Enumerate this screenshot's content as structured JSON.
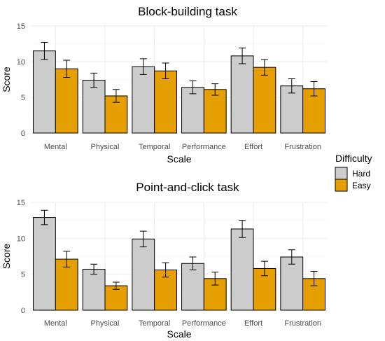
{
  "legend": {
    "title": "Difficulty",
    "items": [
      {
        "label": "Hard",
        "color": "#cccccc"
      },
      {
        "label": "Easy",
        "color": "#e69f00"
      }
    ]
  },
  "chart_data": [
    {
      "type": "bar",
      "title": "Block-building task",
      "xlabel": "Scale",
      "ylabel": "Score",
      "ylim": [
        0,
        15
      ],
      "yticks": [
        0,
        5,
        10,
        15
      ],
      "grid": true,
      "categories": [
        "Mental",
        "Physical",
        "Temporal",
        "Performance",
        "Effort",
        "Frustration"
      ],
      "series": [
        {
          "name": "Hard",
          "color": "#cccccc",
          "values": [
            11.5,
            7.4,
            9.3,
            6.4,
            10.8,
            6.6
          ],
          "err": [
            1.2,
            1.0,
            1.1,
            0.9,
            1.1,
            1.0
          ]
        },
        {
          "name": "Easy",
          "color": "#e69f00",
          "values": [
            9.0,
            5.2,
            8.7,
            6.1,
            9.2,
            6.2
          ],
          "err": [
            1.2,
            0.9,
            1.1,
            0.8,
            1.1,
            1.0
          ]
        }
      ]
    },
    {
      "type": "bar",
      "title": "Point-and-click task",
      "xlabel": "Scale",
      "ylabel": "Score",
      "ylim": [
        0,
        15
      ],
      "yticks": [
        0,
        5,
        10,
        15
      ],
      "grid": true,
      "categories": [
        "Mental",
        "Physical",
        "Temporal",
        "Performance",
        "Effort",
        "Frustration"
      ],
      "series": [
        {
          "name": "Hard",
          "color": "#cccccc",
          "values": [
            12.9,
            5.7,
            9.9,
            6.5,
            11.3,
            7.4
          ],
          "err": [
            1.0,
            0.7,
            1.1,
            0.9,
            1.2,
            1.0
          ]
        },
        {
          "name": "Easy",
          "color": "#e69f00",
          "values": [
            7.1,
            3.4,
            5.6,
            4.4,
            5.8,
            4.4
          ],
          "err": [
            1.1,
            0.5,
            1.0,
            0.9,
            1.0,
            1.0
          ]
        }
      ]
    }
  ]
}
